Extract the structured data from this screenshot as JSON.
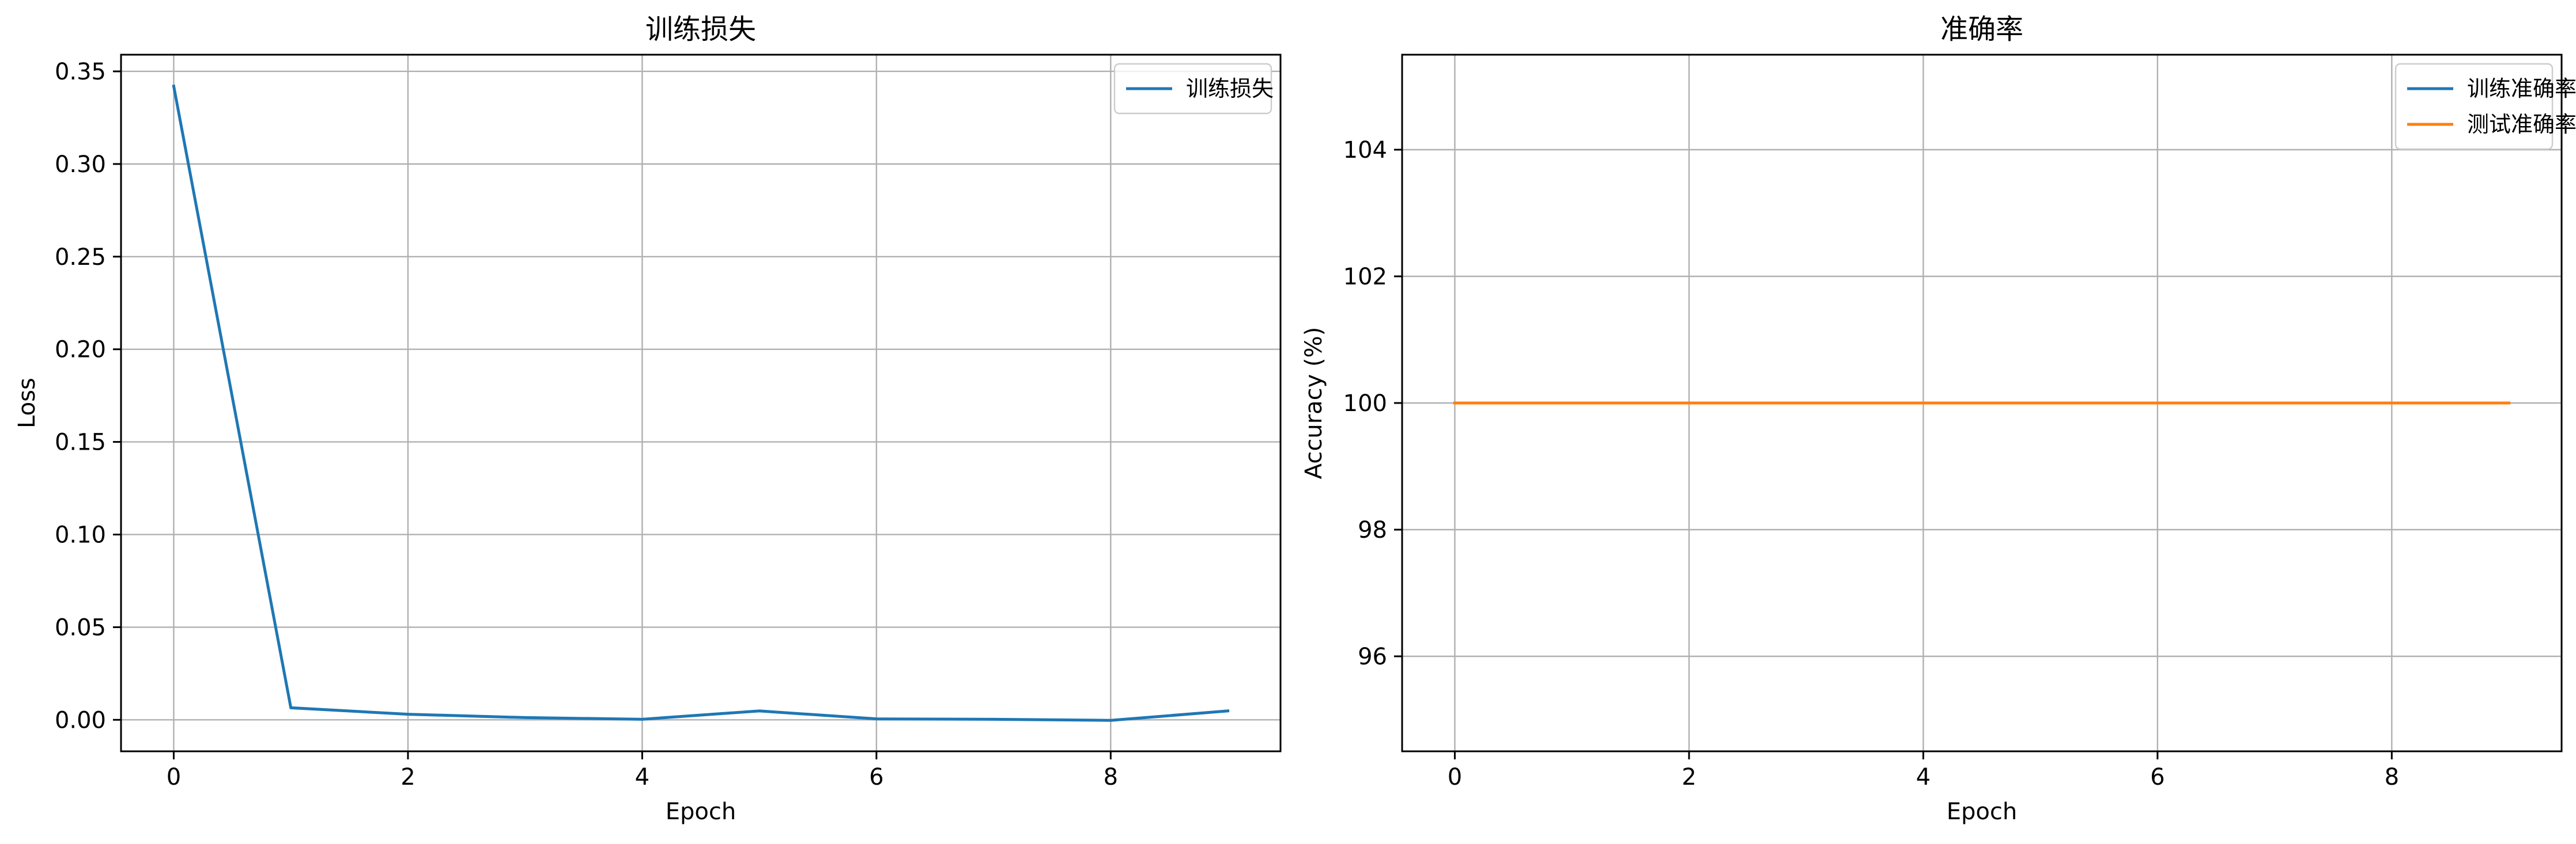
{
  "chart_data": [
    {
      "type": "line",
      "title": "训练损失",
      "xlabel": "Epoch",
      "ylabel": "Loss",
      "xlim": [
        -0.45,
        9.45
      ],
      "ylim": [
        -0.017,
        0.359
      ],
      "xticks": [
        0,
        2,
        4,
        6,
        8
      ],
      "yticks": [
        0.0,
        0.05,
        0.1,
        0.15,
        0.2,
        0.25,
        0.3,
        0.35
      ],
      "ytick_labels": [
        "0.00",
        "0.05",
        "0.10",
        "0.15",
        "0.20",
        "0.25",
        "0.30",
        "0.35"
      ],
      "grid": true,
      "legend_position": "top-right",
      "x": [
        0,
        1,
        2,
        3,
        4,
        5,
        6,
        7,
        8,
        9
      ],
      "series": [
        {
          "name": "训练损失",
          "color": "#1f77b4",
          "values": [
            0.342,
            0.0065,
            0.003,
            0.0012,
            0.0003,
            0.0048,
            0.0005,
            0.0003,
            -0.0003,
            0.0048
          ]
        }
      ]
    },
    {
      "type": "line",
      "title": "准确率",
      "xlabel": "Epoch",
      "ylabel": "Accuracy (%)",
      "xlim": [
        -0.45,
        9.45
      ],
      "ylim": [
        94.5,
        105.5
      ],
      "xticks": [
        0,
        2,
        4,
        6,
        8
      ],
      "yticks": [
        96,
        98,
        100,
        102,
        104
      ],
      "ytick_labels": [
        "96",
        "98",
        "100",
        "102",
        "104"
      ],
      "grid": true,
      "legend_position": "top-right",
      "x": [
        0,
        1,
        2,
        3,
        4,
        5,
        6,
        7,
        8,
        9
      ],
      "series": [
        {
          "name": "训练准确率",
          "color": "#1f77b4",
          "values": [
            100,
            100,
            100,
            100,
            100,
            100,
            100,
            100,
            100,
            100
          ]
        },
        {
          "name": "测试准确率",
          "color": "#ff7f0e",
          "values": [
            100,
            100,
            100,
            100,
            100,
            100,
            100,
            100,
            100,
            100
          ]
        }
      ]
    }
  ]
}
